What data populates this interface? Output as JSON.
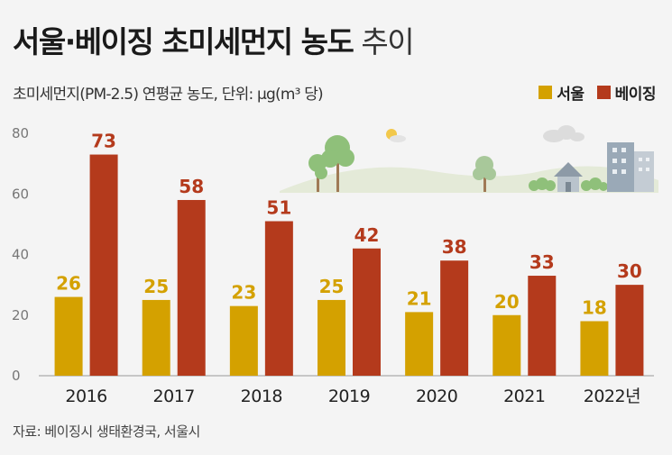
{
  "title_bold": "서울·베이징 초미세먼지 농도",
  "title_light": "추이",
  "subtitle": "초미세먼지(PM-2.5) 연평균 농도, 단위: μg(m³ 당)",
  "source": "자료: 베이징시 생태환경국, 서울시",
  "colors": {
    "seoul": "#d4a100",
    "beijing": "#b43a1c",
    "seoul_label": "#d4a100",
    "beijing_label": "#b43a1c"
  },
  "chart_data": {
    "type": "bar",
    "categories": [
      "2016",
      "2017",
      "2018",
      "2019",
      "2020",
      "2021",
      "2022년"
    ],
    "series": [
      {
        "name": "서울",
        "values": [
          26,
          25,
          23,
          25,
          21,
          20,
          18
        ]
      },
      {
        "name": "베이징",
        "values": [
          73,
          58,
          51,
          42,
          38,
          33,
          30
        ]
      }
    ],
    "ylim": [
      0,
      80
    ],
    "yticks": [
      0,
      20,
      40,
      60,
      80
    ],
    "grid": false,
    "legend": "top-right"
  }
}
